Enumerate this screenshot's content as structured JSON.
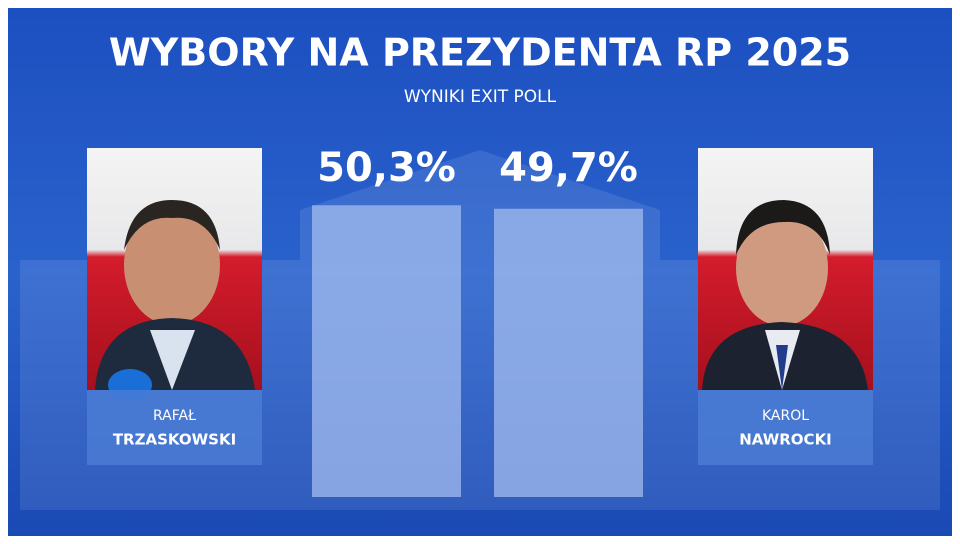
{
  "chart_data": {
    "type": "bar",
    "title": "WYBORY NA PREZYDENTA RP 2025",
    "subtitle": "WYNIKI EXIT POLL",
    "candidates": [
      {
        "first_name": "RAFAŁ",
        "last_name": "TRZASKOWSKI"
      },
      {
        "first_name": "KAROL",
        "last_name": "NAWROCKI"
      }
    ],
    "values": [
      50.3,
      49.7
    ],
    "value_labels": [
      "50,3%",
      "49,7%"
    ],
    "color": "#a9c2f0"
  }
}
